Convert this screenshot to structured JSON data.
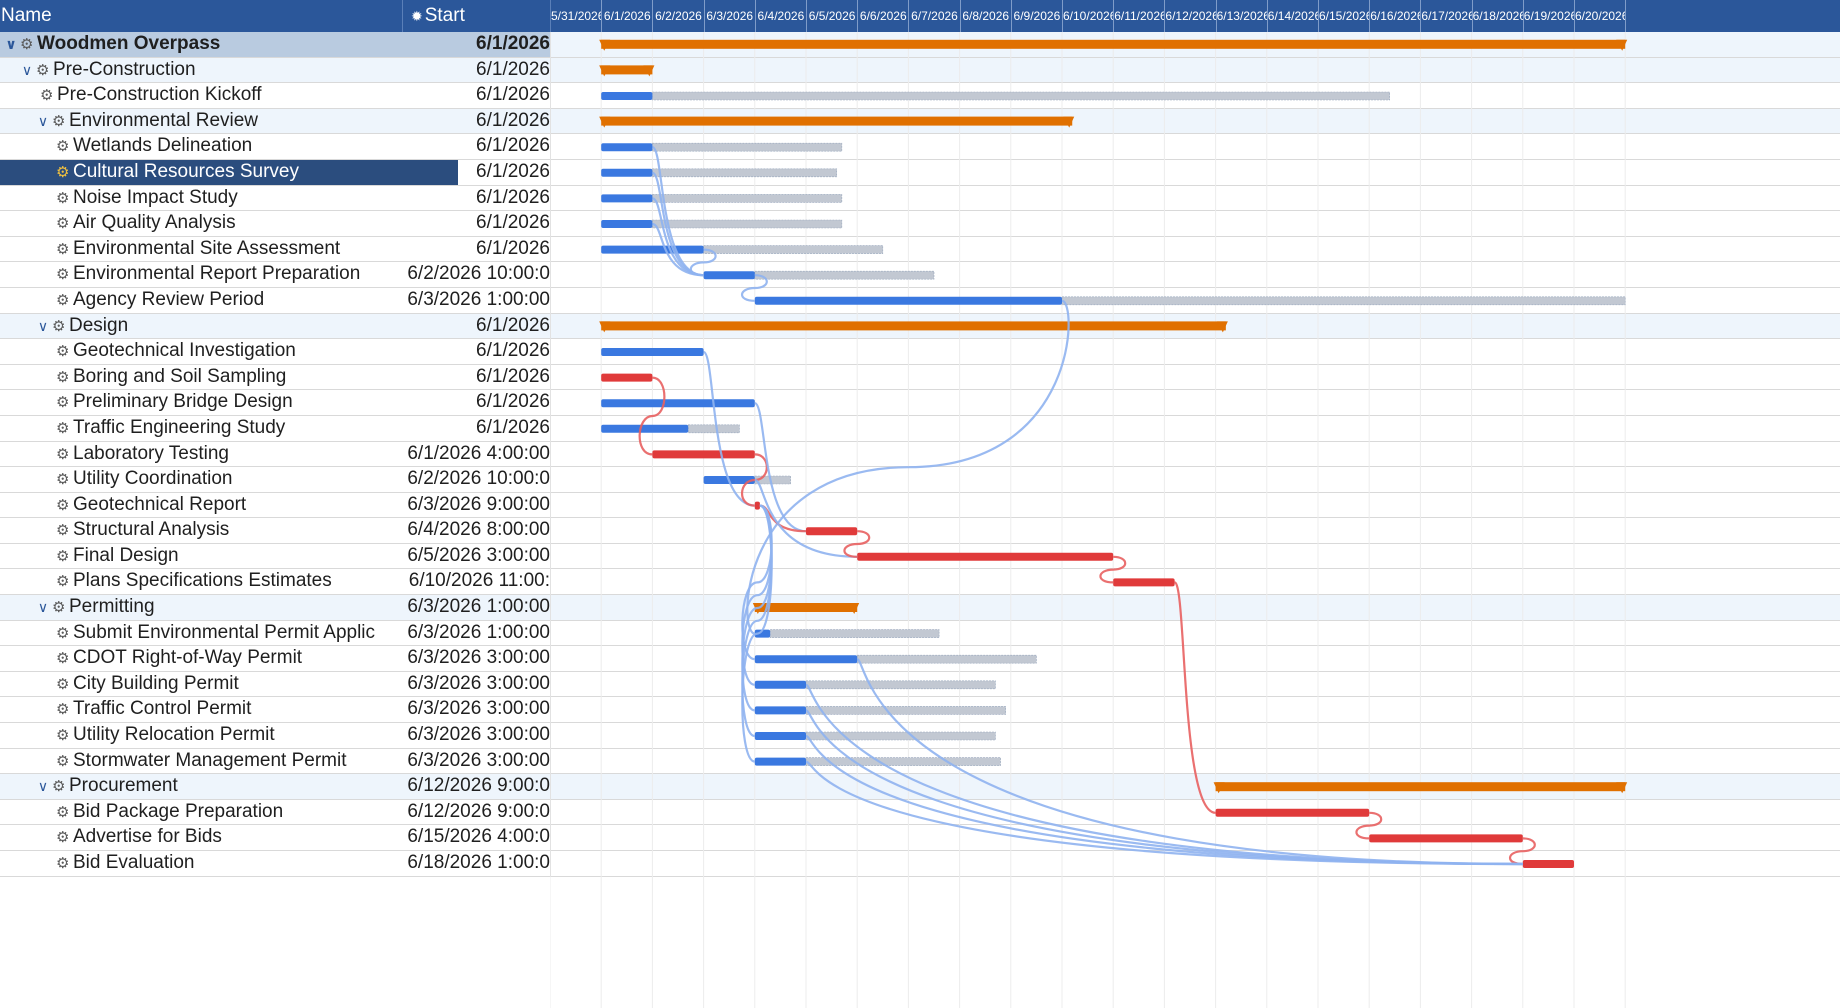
{
  "header": {
    "name_label": "Name",
    "start_label": "Start",
    "pin_icon": "pin-icon"
  },
  "timeline": {
    "start_date": "5/31/2026",
    "dates": [
      "5/31/2026",
      "6/1/2026",
      "6/2/2026",
      "6/3/2026",
      "6/4/2026",
      "6/5/2026",
      "6/6/2026",
      "6/7/2026",
      "6/8/2026",
      "6/9/2026",
      "6/10/2026",
      "6/11/2026",
      "6/12/2026",
      "6/13/2026",
      "6/14/2026",
      "6/15/2026",
      "6/16/2026",
      "6/17/2026",
      "6/18/2026",
      "6/19/2026",
      "6/20/2026"
    ]
  },
  "colors": {
    "header_bg": "#2b579a",
    "summary_bar": "#e07000",
    "task_bar": "#3a78e0",
    "critical_bar": "#e03a3a",
    "remaining_bar": "#c2c8d2",
    "link_line": "#8fb3ef",
    "critical_link": "#e86060",
    "selected_row": "#2b4d7e"
  },
  "rows": [
    {
      "name": "Woodmen Overpass",
      "start": "6/1/2026",
      "level": 0,
      "type": "root",
      "expanded": true
    },
    {
      "name": "Pre-Construction",
      "start": "6/1/2026",
      "level": 1,
      "type": "summary",
      "expanded": true
    },
    {
      "name": "Pre-Construction Kickoff",
      "start": "6/1/2026",
      "level": 2,
      "type": "task"
    },
    {
      "name": "Environmental Review",
      "start": "6/1/2026",
      "level": 2,
      "type": "summary",
      "expanded": true
    },
    {
      "name": "Wetlands Delineation",
      "start": "6/1/2026",
      "level": 3,
      "type": "task"
    },
    {
      "name": "Cultural Resources Survey",
      "start": "6/1/2026",
      "level": 3,
      "type": "task",
      "selected": true
    },
    {
      "name": "Noise Impact Study",
      "start": "6/1/2026",
      "level": 3,
      "type": "task"
    },
    {
      "name": "Air Quality Analysis",
      "start": "6/1/2026",
      "level": 3,
      "type": "task"
    },
    {
      "name": "Environmental Site Assessment",
      "start": "6/1/2026",
      "level": 3,
      "type": "task"
    },
    {
      "name": "Environmental Report Preparation",
      "start": "6/2/2026 10:00:0",
      "level": 3,
      "type": "task"
    },
    {
      "name": "Agency Review Period",
      "start": "6/3/2026 1:00:00",
      "level": 3,
      "type": "task"
    },
    {
      "name": "Design",
      "start": "6/1/2026",
      "level": 2,
      "type": "summary",
      "expanded": true
    },
    {
      "name": "Geotechnical Investigation",
      "start": "6/1/2026",
      "level": 3,
      "type": "task"
    },
    {
      "name": "Boring and Soil Sampling",
      "start": "6/1/2026",
      "level": 3,
      "type": "task"
    },
    {
      "name": "Preliminary Bridge Design",
      "start": "6/1/2026",
      "level": 3,
      "type": "task"
    },
    {
      "name": "Traffic Engineering Study",
      "start": "6/1/2026",
      "level": 3,
      "type": "task"
    },
    {
      "name": "Laboratory Testing",
      "start": "6/1/2026 4:00:00",
      "level": 3,
      "type": "task"
    },
    {
      "name": "Utility Coordination",
      "start": "6/2/2026 10:00:0",
      "level": 3,
      "type": "task"
    },
    {
      "name": "Geotechnical Report",
      "start": "6/3/2026 9:00:00",
      "level": 3,
      "type": "task"
    },
    {
      "name": "Structural Analysis",
      "start": "6/4/2026 8:00:00",
      "level": 3,
      "type": "task"
    },
    {
      "name": "Final Design",
      "start": "6/5/2026 3:00:00",
      "level": 3,
      "type": "task"
    },
    {
      "name": "Plans Specifications Estimates",
      "start": "6/10/2026 11:00:",
      "level": 3,
      "type": "task"
    },
    {
      "name": "Permitting",
      "start": "6/3/2026 1:00:00",
      "level": 2,
      "type": "summary",
      "expanded": true
    },
    {
      "name": "Submit Environmental Permit Applic",
      "start": "6/3/2026 1:00:00",
      "level": 3,
      "type": "task"
    },
    {
      "name": "CDOT Right-of-Way Permit",
      "start": "6/3/2026 3:00:00",
      "level": 3,
      "type": "task"
    },
    {
      "name": "City Building Permit",
      "start": "6/3/2026 3:00:00",
      "level": 3,
      "type": "task"
    },
    {
      "name": "Traffic Control Permit",
      "start": "6/3/2026 3:00:00",
      "level": 3,
      "type": "task"
    },
    {
      "name": "Utility Relocation Permit",
      "start": "6/3/2026 3:00:00",
      "level": 3,
      "type": "task"
    },
    {
      "name": "Stormwater Management Permit",
      "start": "6/3/2026 3:00:00",
      "level": 3,
      "type": "task"
    },
    {
      "name": "Procurement",
      "start": "6/12/2026 9:00:0",
      "level": 2,
      "type": "summary",
      "expanded": true
    },
    {
      "name": "Bid Package Preparation",
      "start": "6/12/2026 9:00:0",
      "level": 3,
      "type": "task"
    },
    {
      "name": "Advertise for Bids",
      "start": "6/15/2026 4:00:0",
      "level": 3,
      "type": "task"
    },
    {
      "name": "Bid Evaluation",
      "start": "6/18/2026 1:00:0",
      "level": 3,
      "type": "task"
    }
  ],
  "bars": [
    {
      "row": 0,
      "kind": "summary",
      "start": 1.0,
      "end": 21.0
    },
    {
      "row": 1,
      "kind": "summary",
      "start": 1.0,
      "end": 2.0
    },
    {
      "row": 2,
      "kind": "task",
      "start": 1.0,
      "end": 2.0,
      "remaining_end": 16.4
    },
    {
      "row": 3,
      "kind": "summary",
      "start": 1.0,
      "end": 10.2
    },
    {
      "row": 4,
      "kind": "task",
      "start": 1.0,
      "end": 2.0,
      "remaining_end": 5.7
    },
    {
      "row": 5,
      "kind": "task",
      "start": 1.0,
      "end": 2.0,
      "remaining_end": 5.6
    },
    {
      "row": 6,
      "kind": "task",
      "start": 1.0,
      "end": 2.0,
      "remaining_end": 5.7
    },
    {
      "row": 7,
      "kind": "task",
      "start": 1.0,
      "end": 2.0,
      "remaining_end": 5.7
    },
    {
      "row": 8,
      "kind": "task",
      "start": 1.0,
      "end": 3.0,
      "remaining_end": 6.5
    },
    {
      "row": 9,
      "kind": "task",
      "start": 3.0,
      "end": 4.0,
      "remaining_end": 7.5
    },
    {
      "row": 10,
      "kind": "task",
      "start": 4.0,
      "end": 10.0,
      "remaining_end": 21.0
    },
    {
      "row": 11,
      "kind": "summary",
      "start": 1.0,
      "end": 13.2
    },
    {
      "row": 12,
      "kind": "task",
      "start": 1.0,
      "end": 3.0
    },
    {
      "row": 13,
      "kind": "critical",
      "start": 1.0,
      "end": 2.0
    },
    {
      "row": 14,
      "kind": "task",
      "start": 1.0,
      "end": 4.0
    },
    {
      "row": 15,
      "kind": "task",
      "start": 1.0,
      "end": 2.7,
      "remaining_end": 3.7
    },
    {
      "row": 16,
      "kind": "critical",
      "start": 2.0,
      "end": 4.0
    },
    {
      "row": 17,
      "kind": "task",
      "start": 3.0,
      "end": 4.0,
      "remaining_end": 4.7
    },
    {
      "row": 18,
      "kind": "critical",
      "start": 4.0,
      "end": 4.1
    },
    {
      "row": 19,
      "kind": "critical",
      "start": 5.0,
      "end": 6.0
    },
    {
      "row": 20,
      "kind": "critical",
      "start": 6.0,
      "end": 11.0
    },
    {
      "row": 21,
      "kind": "critical",
      "start": 11.0,
      "end": 12.2
    },
    {
      "row": 22,
      "kind": "summary",
      "start": 4.0,
      "end": 6.0
    },
    {
      "row": 23,
      "kind": "task",
      "start": 4.0,
      "end": 4.3,
      "remaining_end": 7.6
    },
    {
      "row": 24,
      "kind": "task",
      "start": 4.0,
      "end": 6.0,
      "remaining_end": 9.5
    },
    {
      "row": 25,
      "kind": "task",
      "start": 4.0,
      "end": 5.0,
      "remaining_end": 8.7
    },
    {
      "row": 26,
      "kind": "task",
      "start": 4.0,
      "end": 5.0,
      "remaining_end": 8.9
    },
    {
      "row": 27,
      "kind": "task",
      "start": 4.0,
      "end": 5.0,
      "remaining_end": 8.7
    },
    {
      "row": 28,
      "kind": "task",
      "start": 4.0,
      "end": 5.0,
      "remaining_end": 8.8
    },
    {
      "row": 29,
      "kind": "summary",
      "start": 13.0,
      "end": 21.0
    },
    {
      "row": 30,
      "kind": "critical",
      "start": 13.0,
      "end": 16.0
    },
    {
      "row": 31,
      "kind": "critical",
      "start": 16.0,
      "end": 19.0
    },
    {
      "row": 32,
      "kind": "critical",
      "start": 19.0,
      "end": 20.0
    }
  ],
  "links": [
    {
      "from": 4,
      "to": 9,
      "critical": false
    },
    {
      "from": 5,
      "to": 9,
      "critical": false
    },
    {
      "from": 6,
      "to": 9,
      "critical": false
    },
    {
      "from": 7,
      "to": 9,
      "critical": false
    },
    {
      "from": 8,
      "to": 9,
      "critical": false
    },
    {
      "from": 9,
      "to": 10,
      "critical": false
    },
    {
      "from": 10,
      "to": 23,
      "critical": false
    },
    {
      "from": 12,
      "to": 18,
      "critical": false
    },
    {
      "from": 13,
      "to": 16,
      "critical": true
    },
    {
      "from": 16,
      "to": 18,
      "critical": true
    },
    {
      "from": 14,
      "to": 19,
      "critical": false
    },
    {
      "from": 18,
      "to": 19,
      "critical": true
    },
    {
      "from": 17,
      "to": 20,
      "critical": false
    },
    {
      "from": 19,
      "to": 20,
      "critical": true
    },
    {
      "from": 20,
      "to": 21,
      "critical": true
    },
    {
      "from": 21,
      "to": 30,
      "critical": true
    },
    {
      "from": 30,
      "to": 31,
      "critical": true
    },
    {
      "from": 31,
      "to": 32,
      "critical": true
    },
    {
      "from": 18,
      "to": 24,
      "critical": false
    },
    {
      "from": 18,
      "to": 25,
      "critical": false
    },
    {
      "from": 18,
      "to": 26,
      "critical": false
    },
    {
      "from": 18,
      "to": 27,
      "critical": false
    },
    {
      "from": 18,
      "to": 28,
      "critical": false
    },
    {
      "from": 24,
      "to": 32,
      "critical": false
    },
    {
      "from": 25,
      "to": 32,
      "critical": false
    },
    {
      "from": 26,
      "to": 32,
      "critical": false
    },
    {
      "from": 27,
      "to": 32,
      "critical": false
    },
    {
      "from": 28,
      "to": 32,
      "critical": false
    }
  ]
}
